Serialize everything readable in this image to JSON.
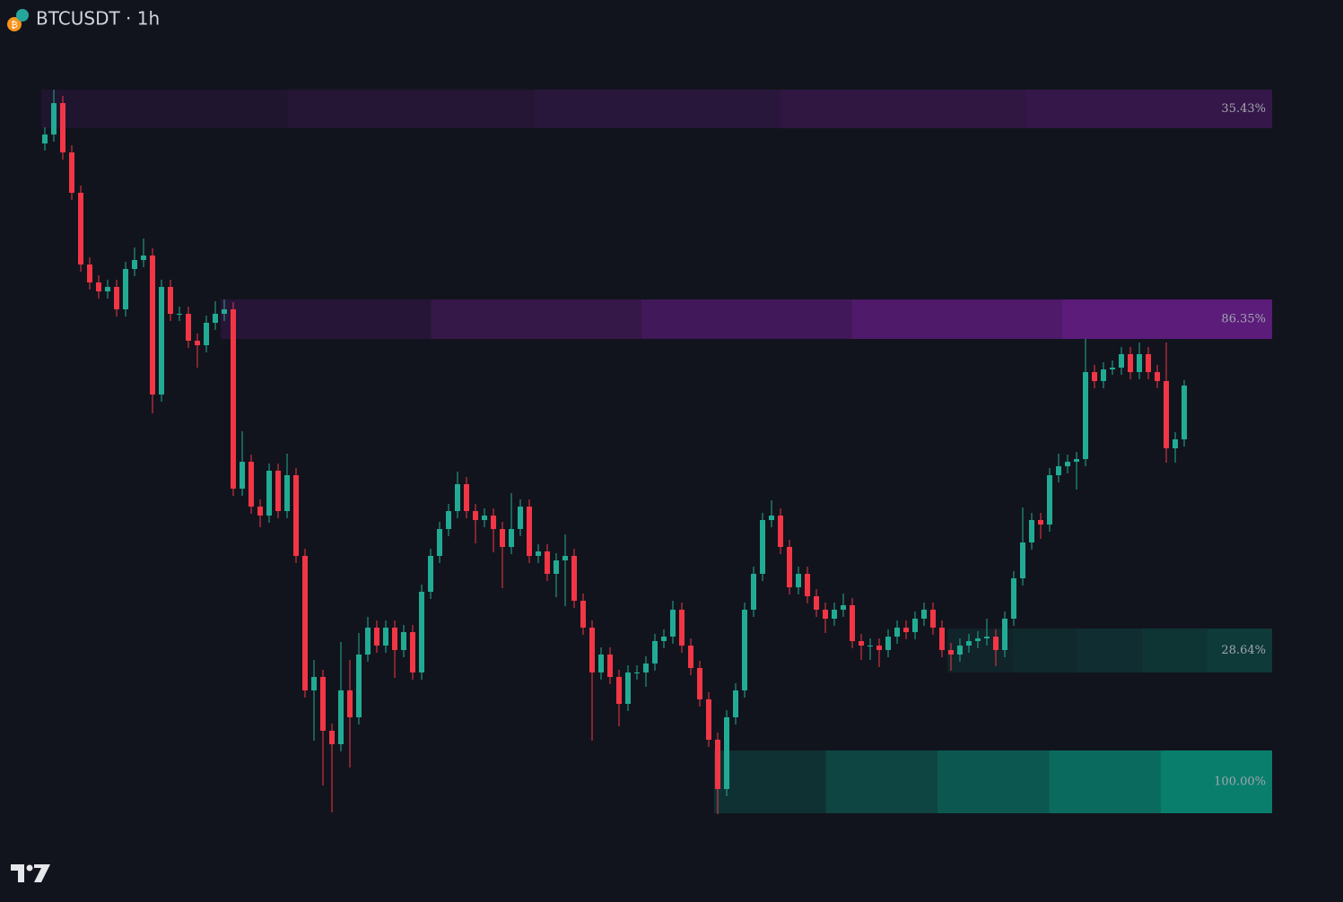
{
  "chart_data": {
    "type": "candlestick",
    "title": "BTCUSDT · 1h",
    "up_color": "#22ab94",
    "down_color": "#f23645",
    "ylim": [
      0,
      1006
    ],
    "open": [
      846,
      856,
      891,
      836,
      791,
      711,
      691,
      681,
      686,
      661,
      706,
      716,
      721,
      566,
      686,
      656,
      656,
      626,
      621,
      646,
      656,
      661,
      461,
      491,
      441,
      431,
      481,
      436,
      476,
      386,
      236,
      251,
      191,
      176,
      236,
      206,
      276,
      306,
      286,
      306,
      281,
      301,
      256,
      346,
      386,
      416,
      436,
      466,
      436,
      426,
      431,
      416,
      396,
      416,
      441,
      386,
      391,
      366,
      381,
      386,
      336,
      306,
      256,
      276,
      251,
      221,
      256,
      256,
      266,
      291,
      296,
      326,
      286,
      261,
      226,
      181,
      126,
      206,
      236,
      326,
      366,
      426,
      431,
      396,
      351,
      366,
      341,
      326,
      316,
      326,
      331,
      291,
      286,
      286,
      281,
      296,
      306,
      301,
      316,
      326,
      306,
      281,
      276,
      286,
      291,
      294,
      296,
      281,
      316,
      361,
      401,
      426,
      421,
      476,
      486,
      491,
      494,
      591,
      581,
      594,
      596,
      611,
      591,
      611,
      591,
      581,
      506,
      516
    ],
    "high": [
      864,
      906,
      899,
      844,
      799,
      719,
      699,
      694,
      694,
      714,
      730,
      740,
      729,
      694,
      694,
      664,
      664,
      634,
      654,
      670,
      672,
      669,
      525,
      499,
      449,
      489,
      489,
      500,
      484,
      394,
      270,
      259,
      199,
      290,
      270,
      300,
      318,
      314,
      314,
      314,
      309,
      309,
      354,
      394,
      424,
      444,
      480,
      474,
      444,
      439,
      439,
      424,
      456,
      449,
      449,
      399,
      399,
      389,
      410,
      394,
      344,
      314,
      284,
      284,
      259,
      264,
      264,
      274,
      299,
      304,
      336,
      334,
      294,
      269,
      234,
      189,
      214,
      244,
      334,
      374,
      434,
      448,
      439,
      404,
      374,
      374,
      349,
      334,
      334,
      344,
      339,
      299,
      294,
      294,
      304,
      314,
      314,
      324,
      334,
      334,
      314,
      289,
      294,
      299,
      302,
      316,
      304,
      324,
      369,
      440,
      434,
      434,
      484,
      500,
      499,
      502,
      628,
      599,
      602,
      604,
      619,
      619,
      624,
      619,
      599,
      624,
      524,
      582
    ],
    "low": [
      838,
      848,
      828,
      783,
      703,
      683,
      673,
      673,
      653,
      653,
      698,
      708,
      545,
      558,
      648,
      648,
      618,
      596,
      613,
      638,
      648,
      453,
      453,
      433,
      418,
      423,
      428,
      428,
      378,
      228,
      180,
      130,
      100,
      168,
      150,
      198,
      268,
      278,
      278,
      250,
      273,
      248,
      248,
      338,
      378,
      408,
      428,
      428,
      400,
      418,
      390,
      350,
      388,
      408,
      378,
      378,
      358,
      340,
      330,
      328,
      298,
      180,
      248,
      243,
      196,
      213,
      248,
      240,
      258,
      283,
      288,
      278,
      253,
      218,
      173,
      98,
      118,
      198,
      228,
      318,
      358,
      418,
      388,
      343,
      343,
      333,
      318,
      300,
      308,
      318,
      283,
      270,
      270,
      262,
      273,
      288,
      293,
      293,
      308,
      298,
      273,
      258,
      268,
      278,
      283,
      286,
      263,
      273,
      308,
      353,
      393,
      405,
      413,
      468,
      478,
      460,
      486,
      573,
      573,
      588,
      588,
      583,
      583,
      583,
      573,
      490,
      490,
      508
    ],
    "close": [
      856,
      891,
      836,
      791,
      711,
      691,
      681,
      686,
      661,
      706,
      716,
      721,
      566,
      686,
      656,
      656,
      626,
      621,
      646,
      656,
      661,
      461,
      491,
      441,
      431,
      481,
      436,
      476,
      386,
      236,
      251,
      191,
      176,
      236,
      206,
      276,
      306,
      286,
      306,
      281,
      301,
      256,
      346,
      386,
      416,
      436,
      466,
      436,
      426,
      431,
      416,
      396,
      416,
      441,
      386,
      391,
      366,
      381,
      386,
      336,
      306,
      256,
      276,
      251,
      221,
      256,
      256,
      266,
      291,
      296,
      326,
      286,
      261,
      226,
      181,
      126,
      206,
      236,
      326,
      366,
      426,
      431,
      396,
      351,
      366,
      341,
      326,
      316,
      326,
      331,
      291,
      286,
      286,
      281,
      296,
      306,
      301,
      316,
      326,
      306,
      281,
      276,
      286,
      291,
      294,
      296,
      281,
      316,
      361,
      401,
      426,
      421,
      476,
      486,
      491,
      494,
      591,
      581,
      594,
      596,
      611,
      591,
      611,
      591,
      581,
      506,
      516,
      576
    ],
    "zones": [
      {
        "top": 906,
        "bottom": 863,
        "from_candle": 0,
        "color": "#7b1fa2",
        "strength": 35.43,
        "value_label": "35.43%"
      },
      {
        "top": 672,
        "bottom": 628,
        "from_candle": 20,
        "color": "#7b1fa2",
        "strength": 86.35,
        "value_label": "86.35%"
      },
      {
        "top": 305,
        "bottom": 256,
        "from_candle": 101,
        "color": "#089981",
        "strength": 28.64,
        "value_label": "28.64%"
      },
      {
        "top": 169,
        "bottom": 99,
        "from_candle": 75,
        "color": "#089981",
        "strength": 100.0,
        "value_label": "100.00%"
      }
    ]
  }
}
